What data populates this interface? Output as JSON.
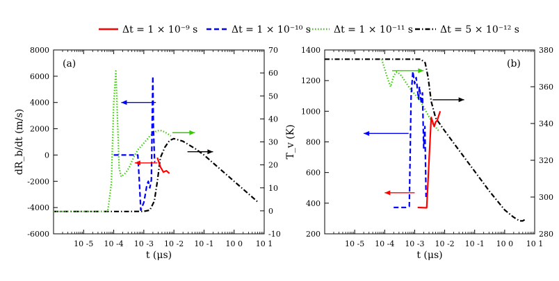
{
  "chart_data": {
    "type": "line",
    "legend": [
      {
        "label": "Δt = 1 × 10⁻⁹ s",
        "color": "#ff0000",
        "dash": "solid"
      },
      {
        "label": "Δt = 1 × 10⁻¹⁰ s",
        "color": "#0000ff",
        "dash": "dashed"
      },
      {
        "label": "Δt = 1 × 10⁻¹¹ s",
        "color": "#33cc00",
        "dash": "dotted"
      },
      {
        "label": "Δt = 5 × 10⁻¹² s",
        "color": "#000000",
        "dash": "dashdot"
      }
    ],
    "panels": [
      {
        "id": "a",
        "label": "(a)",
        "xlabel": "t (μs)",
        "ylabel_left": "dR_b/dt (m/s)",
        "ylabel_right": "",
        "x_scale": "log",
        "xlim_exp": [
          -6,
          1
        ],
        "x_ticks": [
          {
            "exp": -5,
            "label": "10 -5"
          },
          {
            "exp": -4,
            "label": "10 -4"
          },
          {
            "exp": -3,
            "label": "10 -3"
          },
          {
            "exp": -2,
            "label": "10 -2"
          },
          {
            "exp": -1,
            "label": "10 -1"
          },
          {
            "exp": 0,
            "label": "10 0"
          },
          {
            "exp": 1,
            "label": "10 1"
          }
        ],
        "ylim_left": [
          -6000,
          8000
        ],
        "yticks_left": [
          {
            "v": -6000,
            "label": "-6000"
          },
          {
            "v": -4000,
            "label": "-4000"
          },
          {
            "v": -2000,
            "label": "-2000"
          },
          {
            "v": 0,
            "label": "0"
          },
          {
            "v": 2000,
            "label": "2000"
          },
          {
            "v": 4000,
            "label": "4000"
          },
          {
            "v": 6000,
            "label": "6000"
          },
          {
            "v": 8000,
            "label": "8000"
          }
        ],
        "ylim_right": [
          -10,
          70
        ],
        "yticks_right": [
          {
            "v": -10,
            "label": "-10"
          },
          {
            "v": 0,
            "label": "0"
          },
          {
            "v": 10,
            "label": "10"
          },
          {
            "v": 20,
            "label": "20"
          },
          {
            "v": 30,
            "label": "30"
          },
          {
            "v": 40,
            "label": "40"
          },
          {
            "v": 50,
            "label": "50"
          },
          {
            "v": 60,
            "label": "60"
          },
          {
            "v": 70,
            "label": "70"
          }
        ],
        "series": [
          {
            "name": "dt=5e-12 s",
            "color": "#000000",
            "dash": "dashdot",
            "axis": "left",
            "x_exp": [
              -6,
              -3.5,
              -3,
              -2.8,
              -2.65,
              -2.55,
              -2.45,
              -2.3,
              -2.15,
              -2.0,
              -1.7,
              -1.3,
              -1.0,
              -0.5,
              0,
              0.3,
              0.6,
              0.8
            ],
            "y": [
              -4300,
              -4300,
              -4290,
              -4200,
              -3500,
              -2000,
              -200,
              600,
              1100,
              1250,
              1050,
              500,
              0,
              -1000,
              -2000,
              -2600,
              -3200,
              -3600
            ]
          },
          {
            "name": "dt=1e-11 s",
            "color": "#33cc00",
            "dash": "dotted",
            "axis": "left",
            "x_exp": [
              -6,
              -4.2,
              -4.08,
              -4.0,
              -3.93,
              -3.88,
              -3.82,
              -3.75,
              -3.6,
              -3.5,
              -3.4,
              -3.3,
              -3.2,
              -3.0,
              -2.8,
              -2.6,
              -2.5,
              -2.4,
              -2.3,
              -2.2,
              -2.1
            ],
            "y": [
              -4300,
              -4300,
              -2200,
              4000,
              6400,
              3000,
              -1000,
              -1650,
              -1350,
              -1000,
              -500,
              0,
              400,
              900,
              1450,
              1800,
              1870,
              1850,
              1750,
              1600,
              1450
            ]
          },
          {
            "name": "dt=1e-10 s",
            "color": "#0000ff",
            "dash": "dashed",
            "axis": "left",
            "x_exp": [
              -4,
              -3.2,
              -3.15,
              -3.1,
              -3.0,
              -2.95,
              -2.9,
              -2.85,
              -2.8,
              -2.75,
              -2.7,
              -2.68,
              -2.64,
              -2.62
            ],
            "y": [
              0,
              0,
              -2000,
              -4200,
              -3600,
              -3000,
              -2300,
              -2000,
              -2500,
              -1900,
              6000,
              2000,
              -500,
              -500
            ]
          },
          {
            "name": "dt=1e-9 s",
            "color": "#ff0000",
            "dash": "solid",
            "axis": "left",
            "x_exp": [
              -2.55,
              -2.45,
              -2.35,
              -2.25,
              -2.15
            ],
            "y": [
              -200,
              -900,
              -1300,
              -1200,
              -1400
            ]
          }
        ],
        "arrows": [
          {
            "color": "#0000ff",
            "direction": "left",
            "x_exp": [
              -2.6,
              -3.75
            ],
            "y": 4000,
            "axis": "left"
          },
          {
            "color": "#33cc00",
            "direction": "right",
            "x_exp": [
              -2.05,
              -1.3
            ],
            "y": 1700,
            "axis": "left"
          },
          {
            "color": "#ff0000",
            "direction": "left",
            "x_exp": [
              -2.55,
              -3.3
            ],
            "y": -600,
            "axis": "left"
          },
          {
            "color": "#000000",
            "direction": "right",
            "x_exp": [
              -1.55,
              -0.7
            ],
            "y": 250,
            "axis": "left"
          }
        ]
      },
      {
        "id": "b",
        "label": "(b)",
        "xlabel": "t (μs)",
        "ylabel_left": "T_v (K)",
        "ylabel_right": "",
        "x_scale": "log",
        "xlim_exp": [
          -6,
          1
        ],
        "x_ticks": [
          {
            "exp": -5,
            "label": "10 -5"
          },
          {
            "exp": -4,
            "label": "10 -4"
          },
          {
            "exp": -3,
            "label": "10 -3"
          },
          {
            "exp": -2,
            "label": "10 -2"
          },
          {
            "exp": -1,
            "label": "10 -1"
          },
          {
            "exp": 0,
            "label": "10 0"
          },
          {
            "exp": 1,
            "label": "10 1"
          }
        ],
        "ylim_left": [
          200,
          1400
        ],
        "yticks_left": [
          {
            "v": 200,
            "label": "200"
          },
          {
            "v": 400,
            "label": "400"
          },
          {
            "v": 600,
            "label": "600"
          },
          {
            "v": 800,
            "label": "800"
          },
          {
            "v": 1000,
            "label": "1000"
          },
          {
            "v": 1200,
            "label": "1200"
          },
          {
            "v": 1400,
            "label": "1400"
          }
        ],
        "ylim_right": [
          280,
          380
        ],
        "yticks_right": [
          {
            "v": 280,
            "label": "280"
          },
          {
            "v": 300,
            "label": "300"
          },
          {
            "v": 320,
            "label": "320"
          },
          {
            "v": 340,
            "label": "340"
          },
          {
            "v": 360,
            "label": "360"
          },
          {
            "v": 380,
            "label": "380"
          }
        ],
        "series": [
          {
            "name": "dt=5e-12 s",
            "color": "#000000",
            "dash": "dashdot",
            "axis": "right",
            "x_exp": [
              -6,
              -3.2,
              -2.8,
              -2.65,
              -2.55,
              -2.45,
              -2.3,
              -2.0,
              -1.5,
              -1.0,
              -0.5,
              0,
              0.3,
              0.5,
              0.6,
              0.7
            ],
            "y": [
              375,
              375,
              375,
              373,
              365,
              352,
              343,
              336,
              325,
              314,
              303,
              293,
              289,
              287,
              287,
              288
            ]
          },
          {
            "name": "dt=1e-11 s",
            "color": "#33cc00",
            "dash": "dotted",
            "axis": "right",
            "x_exp": [
              -4.1,
              -3.95,
              -3.85,
              -3.8,
              -3.7,
              -3.6,
              -3.5,
              -3.4,
              -3.2,
              -3.0,
              -2.8,
              -2.6,
              -2.4,
              -2.2
            ],
            "y": [
              375,
              367,
              362,
              360,
              366,
              368,
              367,
              365,
              360,
              356,
              352,
              346,
              340,
              336
            ]
          },
          {
            "name": "dt=1e-10 s",
            "color": "#0000ff",
            "dash": "dashed",
            "axis": "left",
            "x_exp": [
              -3.7,
              -3.3,
              -3.18,
              -3.12,
              -3.06,
              -3.0,
              -2.95,
              -2.9,
              -2.87,
              -2.84,
              -2.8,
              -2.77,
              -2.74,
              -2.7,
              -2.66,
              -2.62
            ],
            "y": [
              372,
              372,
              380,
              1100,
              1260,
              1180,
              1220,
              1130,
              1080,
              1160,
              1080,
              1050,
              1120,
              760,
              900,
              440
            ]
          },
          {
            "name": "dt=1e-9 s",
            "color": "#ff0000",
            "dash": "solid",
            "axis": "left",
            "x_exp": [
              -2.9,
              -2.6,
              -2.52,
              -2.45,
              -2.35,
              -2.3,
              -2.25,
              -2.15
            ],
            "y": [
              372,
              370,
              680,
              960,
              900,
              930,
              940,
              1000
            ]
          }
        ],
        "arrows": [
          {
            "color": "#33cc00",
            "direction": "right",
            "x_exp": [
              -3.75,
              -2.7
            ],
            "y": 1265,
            "axis": "left"
          },
          {
            "color": "#000000",
            "direction": "right",
            "x_exp": [
              -2.4,
              -1.35
            ],
            "y": 1075,
            "axis": "left"
          },
          {
            "color": "#0000ff",
            "direction": "left",
            "x_exp": [
              -3.2,
              -4.7
            ],
            "y": 855,
            "axis": "left"
          },
          {
            "color": "#ff0000",
            "direction": "left",
            "x_exp": [
              -3.0,
              -4.0
            ],
            "y": 468,
            "axis": "left"
          }
        ]
      }
    ]
  }
}
